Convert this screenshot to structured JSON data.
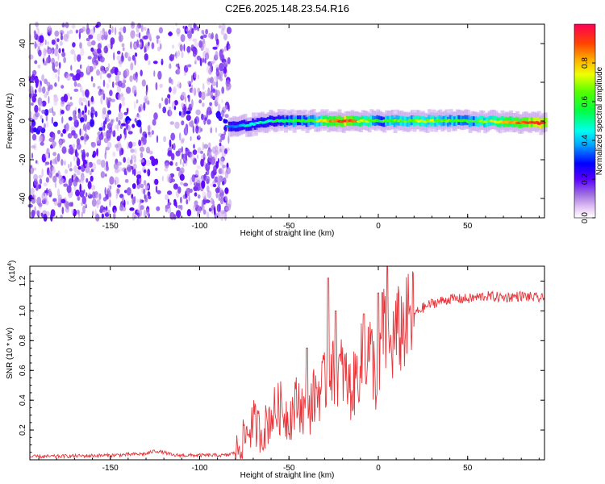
{
  "title": "C2E6.2025.148.23.54.R16",
  "chart_data": [
    {
      "type": "heatmap",
      "xlabel": "Height of straight line (km)",
      "ylabel": "Frequency (Hz)",
      "xlim": [
        -195,
        93
      ],
      "ylim": [
        -50,
        50
      ],
      "xticks": [
        -150,
        -100,
        -50,
        0,
        50
      ],
      "yticks": [
        -40,
        -20,
        0,
        20,
        40
      ],
      "colorbar": {
        "label": "Normalized spectral amplitude",
        "range": [
          0,
          1
        ],
        "ticks": [
          0.0,
          0.2,
          0.4,
          0.6,
          0.8
        ]
      },
      "description_points": [
        {
          "x": -195,
          "y": 0,
          "v": 0.2
        },
        {
          "x": -120,
          "y": 2,
          "v": 0.4
        },
        {
          "x": -80,
          "y": -3,
          "v": 0.4
        },
        {
          "x": -60,
          "y": 0,
          "v": 0.5
        },
        {
          "x": -40,
          "y": 0,
          "v": 0.6
        },
        {
          "x": -20,
          "y": 0,
          "v": 0.95
        },
        {
          "x": 0,
          "y": 0,
          "v": 0.6
        },
        {
          "x": 25,
          "y": 0,
          "v": 0.7
        },
        {
          "x": 50,
          "y": 0,
          "v": 0.6
        },
        {
          "x": 88,
          "y": -1,
          "v": 0.95
        }
      ]
    },
    {
      "type": "line",
      "xlabel": "Height of straight line (km)",
      "ylabel": "SNR (10 * v/v)",
      "yscale_label": "(x10",
      "yscale_exp": "4",
      "yscale_close": ")",
      "xlim": [
        -195,
        93
      ],
      "ylim": [
        0,
        1.3
      ],
      "xticks": [
        -150,
        -100,
        -50,
        0,
        50
      ],
      "yticks": [
        0.2,
        0.4,
        0.6,
        0.8,
        1.0,
        1.2
      ],
      "color": "#e8353a",
      "x": [
        -195,
        -150,
        -130,
        -125,
        -120,
        -115,
        -100,
        -85,
        -80,
        -75,
        -70,
        -65,
        -60,
        -55,
        -50,
        -45,
        -40,
        -35,
        -30,
        -27,
        -25,
        -20,
        -15,
        -10,
        -5,
        -2,
        0,
        2,
        4,
        6,
        10,
        15,
        20,
        25,
        30,
        40,
        50,
        60,
        70,
        80,
        93
      ],
      "values": [
        0.02,
        0.03,
        0.04,
        0.06,
        0.05,
        0.03,
        0.03,
        0.03,
        0.05,
        0.15,
        0.25,
        0.18,
        0.3,
        0.35,
        0.28,
        0.4,
        0.3,
        0.45,
        0.5,
        0.7,
        0.55,
        0.6,
        0.45,
        0.65,
        0.75,
        0.6,
        0.35,
        0.95,
        0.8,
        0.72,
        0.85,
        0.9,
        0.98,
        1.02,
        1.05,
        1.08,
        1.08,
        1.1,
        1.09,
        1.1,
        1.08
      ],
      "peaks": [
        {
          "x": -40,
          "y": 0.75
        },
        {
          "x": -28,
          "y": 1.22
        },
        {
          "x": -24,
          "y": 1.0
        },
        {
          "x": -8,
          "y": 0.98
        },
        {
          "x": 0,
          "y": 1.12
        },
        {
          "x": 5,
          "y": 1.3
        }
      ]
    }
  ]
}
